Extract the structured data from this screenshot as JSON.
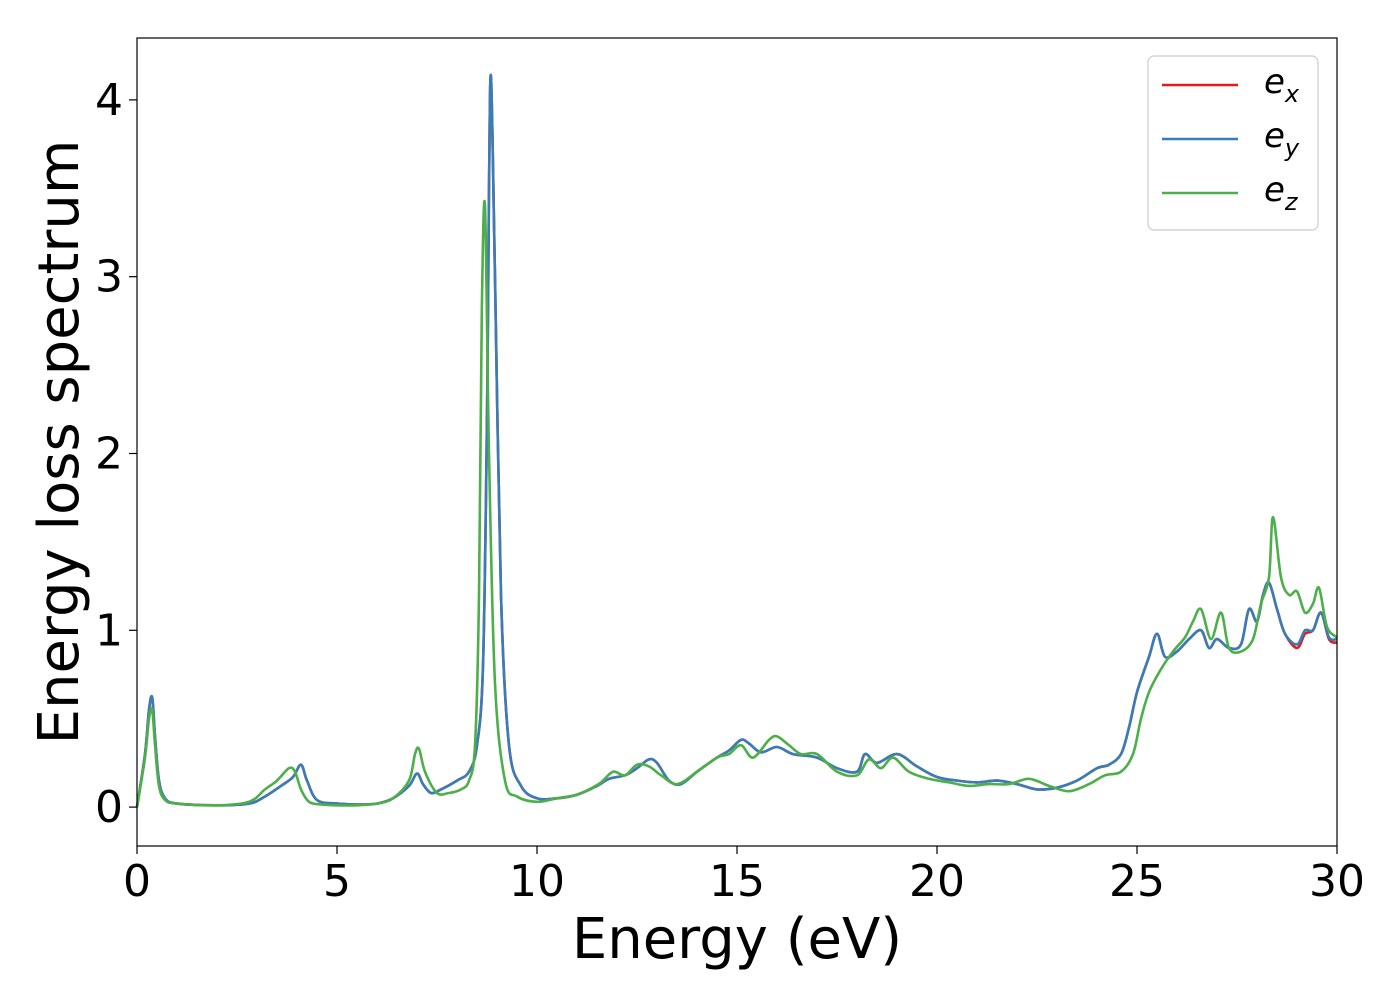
{
  "chart_data": {
    "type": "line",
    "xlabel": "Energy (eV)",
    "ylabel": "Energy loss spectrum",
    "xlim": [
      0,
      30
    ],
    "ylim": [
      -0.22,
      4.35
    ],
    "xticks": [
      0,
      5,
      10,
      15,
      20,
      25,
      30
    ],
    "xtick_labels": [
      "0",
      "5",
      "10",
      "15",
      "20",
      "25",
      "30"
    ],
    "yticks": [
      0,
      1,
      2,
      3,
      4
    ],
    "ytick_labels": [
      "0",
      "1",
      "2",
      "3",
      "4"
    ],
    "grid": false,
    "legend": "top-right",
    "colors": {
      "e_x": "#e41a1c",
      "e_y": "#377eb8",
      "e_z": "#4daf4a"
    },
    "series": [
      {
        "name": "e_x",
        "label_main": "e",
        "label_sub": "x",
        "color": "#e41a1c",
        "x": [
          0,
          0.2,
          0.3,
          0.38,
          0.45,
          0.55,
          0.7,
          1.0,
          2.0,
          2.8,
          3.2,
          3.6,
          3.9,
          4.1,
          4.25,
          4.5,
          5.0,
          5.5,
          6.0,
          6.4,
          6.8,
          7.0,
          7.15,
          7.35,
          7.6,
          8.0,
          8.3,
          8.5,
          8.65,
          8.75,
          8.8,
          8.85,
          8.95,
          9.1,
          9.3,
          9.6,
          10.0,
          10.5,
          11.0,
          11.5,
          11.8,
          12.2,
          12.5,
          12.8,
          13.0,
          13.3,
          13.6,
          14.0,
          14.5,
          14.8,
          15.1,
          15.3,
          15.6,
          16.0,
          16.4,
          17.0,
          17.5,
          18.0,
          18.2,
          18.5,
          19.0,
          19.5,
          20.0,
          20.5,
          21.0,
          21.5,
          22.0,
          22.5,
          23.0,
          23.5,
          24.0,
          24.3,
          24.6,
          24.8,
          25.0,
          25.3,
          25.5,
          25.7,
          26.0,
          26.3,
          26.6,
          26.8,
          27.0,
          27.3,
          27.6,
          27.8,
          28.0,
          28.15,
          28.3,
          28.5,
          28.7,
          29.0,
          29.2,
          29.4,
          29.6,
          29.8,
          30.0
        ],
        "y": [
          0.0,
          0.3,
          0.55,
          0.62,
          0.4,
          0.15,
          0.05,
          0.02,
          0.01,
          0.02,
          0.06,
          0.12,
          0.17,
          0.24,
          0.15,
          0.04,
          0.02,
          0.015,
          0.02,
          0.05,
          0.12,
          0.19,
          0.13,
          0.08,
          0.1,
          0.15,
          0.2,
          0.35,
          0.8,
          2.2,
          3.5,
          4.13,
          3.0,
          1.2,
          0.35,
          0.12,
          0.05,
          0.05,
          0.07,
          0.12,
          0.16,
          0.18,
          0.22,
          0.27,
          0.25,
          0.15,
          0.13,
          0.2,
          0.28,
          0.32,
          0.38,
          0.36,
          0.31,
          0.34,
          0.3,
          0.28,
          0.22,
          0.2,
          0.3,
          0.25,
          0.3,
          0.23,
          0.17,
          0.15,
          0.14,
          0.15,
          0.13,
          0.1,
          0.11,
          0.15,
          0.22,
          0.24,
          0.3,
          0.45,
          0.65,
          0.85,
          0.98,
          0.85,
          0.88,
          0.95,
          1.0,
          0.9,
          0.95,
          0.9,
          0.92,
          1.12,
          1.05,
          1.2,
          1.27,
          1.12,
          0.98,
          0.9,
          0.98,
          1.0,
          1.1,
          0.95,
          0.93
        ]
      },
      {
        "name": "e_y",
        "label_main": "e",
        "label_sub": "y",
        "color": "#377eb8",
        "x": [
          0,
          0.2,
          0.3,
          0.38,
          0.45,
          0.55,
          0.7,
          1.0,
          2.0,
          2.8,
          3.2,
          3.6,
          3.9,
          4.1,
          4.25,
          4.5,
          5.0,
          5.5,
          6.0,
          6.4,
          6.8,
          7.0,
          7.15,
          7.35,
          7.6,
          8.0,
          8.3,
          8.5,
          8.65,
          8.75,
          8.8,
          8.85,
          8.95,
          9.1,
          9.3,
          9.6,
          10.0,
          10.5,
          11.0,
          11.5,
          11.8,
          12.2,
          12.5,
          12.8,
          13.0,
          13.3,
          13.6,
          14.0,
          14.5,
          14.8,
          15.1,
          15.3,
          15.6,
          16.0,
          16.4,
          17.0,
          17.5,
          18.0,
          18.2,
          18.5,
          19.0,
          19.5,
          20.0,
          20.5,
          21.0,
          21.5,
          22.0,
          22.5,
          23.0,
          23.5,
          24.0,
          24.3,
          24.6,
          24.8,
          25.0,
          25.3,
          25.5,
          25.7,
          26.0,
          26.3,
          26.6,
          26.8,
          27.0,
          27.3,
          27.6,
          27.8,
          28.0,
          28.15,
          28.3,
          28.5,
          28.7,
          29.0,
          29.2,
          29.4,
          29.6,
          29.8,
          30.0
        ],
        "y": [
          0.0,
          0.3,
          0.55,
          0.62,
          0.4,
          0.15,
          0.05,
          0.02,
          0.01,
          0.02,
          0.06,
          0.12,
          0.17,
          0.24,
          0.15,
          0.04,
          0.02,
          0.015,
          0.02,
          0.05,
          0.12,
          0.19,
          0.13,
          0.08,
          0.1,
          0.15,
          0.2,
          0.35,
          0.8,
          2.2,
          3.5,
          4.13,
          3.0,
          1.2,
          0.35,
          0.12,
          0.05,
          0.05,
          0.07,
          0.12,
          0.16,
          0.18,
          0.22,
          0.27,
          0.25,
          0.15,
          0.13,
          0.2,
          0.28,
          0.32,
          0.38,
          0.36,
          0.31,
          0.34,
          0.3,
          0.28,
          0.22,
          0.2,
          0.3,
          0.25,
          0.3,
          0.23,
          0.17,
          0.15,
          0.14,
          0.15,
          0.13,
          0.1,
          0.11,
          0.15,
          0.22,
          0.24,
          0.3,
          0.45,
          0.65,
          0.85,
          0.98,
          0.85,
          0.88,
          0.95,
          1.0,
          0.9,
          0.95,
          0.9,
          0.92,
          1.12,
          1.05,
          1.2,
          1.27,
          1.12,
          0.98,
          0.92,
          1.0,
          1.0,
          1.1,
          0.96,
          0.95
        ]
      },
      {
        "name": "e_z",
        "label_main": "e",
        "label_sub": "z",
        "color": "#4daf4a",
        "x": [
          0,
          0.2,
          0.3,
          0.38,
          0.45,
          0.55,
          0.7,
          1.0,
          2.0,
          2.8,
          3.2,
          3.5,
          3.8,
          3.95,
          4.1,
          4.3,
          4.6,
          5.0,
          5.5,
          6.0,
          6.4,
          6.8,
          6.95,
          7.05,
          7.2,
          7.5,
          7.8,
          8.1,
          8.3,
          8.45,
          8.55,
          8.62,
          8.7,
          8.8,
          8.95,
          9.2,
          9.5,
          10.0,
          10.5,
          11.0,
          11.3,
          11.6,
          11.9,
          12.2,
          12.5,
          12.8,
          13.1,
          13.5,
          14.0,
          14.5,
          14.8,
          15.1,
          15.4,
          15.8,
          16.0,
          16.3,
          16.6,
          17.0,
          17.5,
          18.0,
          18.3,
          18.6,
          18.9,
          19.3,
          19.8,
          20.3,
          20.8,
          21.3,
          21.8,
          22.3,
          22.8,
          23.3,
          23.8,
          24.2,
          24.6,
          24.9,
          25.1,
          25.3,
          25.6,
          25.9,
          26.2,
          26.4,
          26.6,
          26.85,
          27.1,
          27.3,
          27.6,
          27.9,
          28.1,
          28.3,
          28.4,
          28.6,
          28.8,
          29.0,
          29.2,
          29.4,
          29.55,
          29.75,
          30.0
        ],
        "y": [
          0.0,
          0.28,
          0.5,
          0.55,
          0.35,
          0.12,
          0.04,
          0.02,
          0.01,
          0.03,
          0.1,
          0.15,
          0.22,
          0.2,
          0.1,
          0.03,
          0.015,
          0.01,
          0.01,
          0.02,
          0.05,
          0.15,
          0.3,
          0.33,
          0.2,
          0.08,
          0.08,
          0.1,
          0.15,
          0.35,
          1.2,
          2.8,
          3.4,
          2.0,
          0.7,
          0.15,
          0.06,
          0.03,
          0.05,
          0.07,
          0.1,
          0.14,
          0.2,
          0.18,
          0.24,
          0.23,
          0.18,
          0.13,
          0.2,
          0.28,
          0.3,
          0.35,
          0.28,
          0.38,
          0.4,
          0.35,
          0.3,
          0.3,
          0.2,
          0.18,
          0.27,
          0.22,
          0.28,
          0.2,
          0.16,
          0.14,
          0.12,
          0.13,
          0.13,
          0.16,
          0.12,
          0.09,
          0.13,
          0.18,
          0.2,
          0.3,
          0.5,
          0.65,
          0.78,
          0.88,
          0.96,
          1.05,
          1.12,
          0.95,
          1.1,
          0.9,
          0.88,
          0.95,
          1.15,
          1.3,
          1.64,
          1.3,
          1.2,
          1.22,
          1.1,
          1.15,
          1.24,
          1.02,
          0.96
        ]
      }
    ]
  }
}
